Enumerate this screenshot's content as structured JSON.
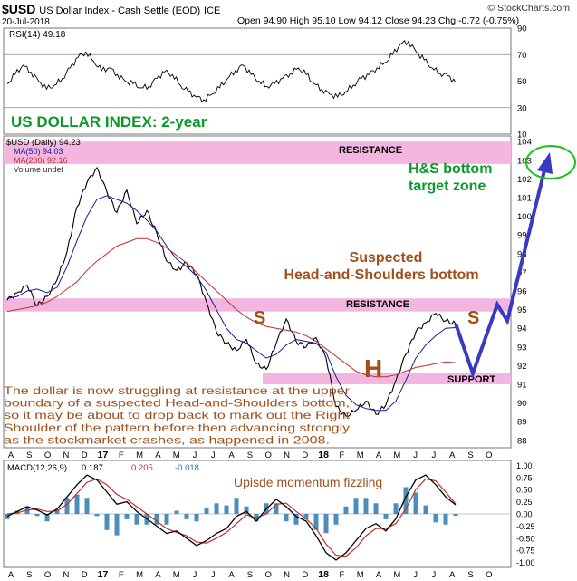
{
  "header": {
    "ticker": "$USD",
    "name": "US Dollar Index - Cash Settle (EOD)",
    "exchange": "ICE",
    "date": "20-Jul-2018",
    "ohlc": "Open 94.90  High 95.10  Low 94.12  Close 94.23  Chg -0.72 (-0.75%)",
    "credit": "© StockCharts.com"
  },
  "colors": {
    "band": "#f2b6e0",
    "price_line": "#000000",
    "ma50": "#1a1a8c",
    "ma200": "#c0302a",
    "annotation_brown": "#a0501a",
    "title_green": "#0a9a2a",
    "arrow_blue": "#3a3ac0",
    "target_green": "#1cc01c",
    "macd_hist": "#2a7ab0"
  },
  "chart_data": [
    {
      "type": "line",
      "panel": "RSI",
      "legend": "RSI(14) 49.18",
      "y_ticks": [
        10,
        30,
        50,
        70,
        90
      ],
      "ylim": [
        10,
        90
      ],
      "reference_lines": [
        30,
        70
      ],
      "values": [
        48,
        55,
        62,
        57,
        50,
        44,
        47,
        52,
        60,
        68,
        72,
        65,
        58,
        60,
        55,
        50,
        48,
        45,
        46,
        52,
        57,
        55,
        47,
        42,
        38,
        36,
        40,
        45,
        52,
        58,
        62,
        55,
        50,
        46,
        48,
        52,
        56,
        60,
        55,
        48,
        44,
        40,
        38,
        42,
        47,
        52,
        55,
        60,
        64,
        70,
        78,
        80,
        72,
        66,
        60,
        56,
        54,
        49
      ]
    },
    {
      "type": "line",
      "panel": "price",
      "title": "US DOLLAR INDEX: 2-year",
      "legend": [
        "$USD (Daily) 94.23",
        "MA(50) 94.03",
        "MA(200) 92.16",
        "Volume undef"
      ],
      "x_tick_labels": [
        "A",
        "S",
        "O",
        "N",
        "D",
        "17",
        "F",
        "M",
        "A",
        "M",
        "J",
        "J",
        "A",
        "S",
        "O",
        "N",
        "D",
        "18",
        "F",
        "M",
        "A",
        "M",
        "J",
        "J",
        "A",
        "S",
        "O"
      ],
      "y_ticks": [
        88,
        89,
        90,
        91,
        92,
        93,
        94,
        95,
        96,
        97,
        98,
        99,
        100,
        101,
        102,
        103,
        104
      ],
      "ylim": [
        87.6,
        104.3
      ],
      "series": [
        {
          "name": "$USD (Daily)",
          "values": [
            95.5,
            95.9,
            96.3,
            95.2,
            95.7,
            96.6,
            98.1,
            100.5,
            101.8,
            102.6,
            101.3,
            100.2,
            101.4,
            99.6,
            100.3,
            99.1,
            97.6,
            97.1,
            97.5,
            96.9,
            95.4,
            93.8,
            93.2,
            92.8,
            93.4,
            92.1,
            91.8,
            93.2,
            94.5,
            93.3,
            93.0,
            93.5,
            92.4,
            89.8,
            89.3,
            89.6,
            90.1,
            89.4,
            89.9,
            91.2,
            92.6,
            93.8,
            94.3,
            94.8,
            94.4,
            94.23
          ]
        },
        {
          "name": "MA(50)",
          "values": [
            95.6,
            95.7,
            96.0,
            96.1,
            95.9,
            96.2,
            97.3,
            98.7,
            100.0,
            100.9,
            101.1,
            100.9,
            100.7,
            100.3,
            99.8,
            99.2,
            98.4,
            97.7,
            97.3,
            96.8,
            96.0,
            95.0,
            94.0,
            93.4,
            93.2,
            92.8,
            92.4,
            92.6,
            93.1,
            93.4,
            93.3,
            93.2,
            92.7,
            91.4,
            90.4,
            89.9,
            89.7,
            89.6,
            89.6,
            90.1,
            91.2,
            92.4,
            93.1,
            93.6,
            94.0,
            94.03
          ]
        },
        {
          "name": "MA(200)",
          "values": [
            94.9,
            95.0,
            95.1,
            95.2,
            95.4,
            95.7,
            96.1,
            96.5,
            97.1,
            97.6,
            98.0,
            98.4,
            98.6,
            98.8,
            98.8,
            98.6,
            98.3,
            97.9,
            97.5,
            97.0,
            96.5,
            96.0,
            95.5,
            95.0,
            94.6,
            94.3,
            94.1,
            94.0,
            93.9,
            93.8,
            93.6,
            93.3,
            92.9,
            92.5,
            92.1,
            91.7,
            91.5,
            91.4,
            91.4,
            91.5,
            91.7,
            91.9,
            92.0,
            92.1,
            92.2,
            92.16
          ]
        }
      ],
      "annotations": [
        {
          "text": "RESISTANCE",
          "zone": [
            102.8,
            104.0
          ]
        },
        {
          "text": "RESISTANCE",
          "zone": [
            94.9,
            95.6
          ]
        },
        {
          "text": "SUPPORT",
          "zone": [
            91.0,
            91.6
          ]
        },
        {
          "text": "H&S bottom"
        },
        {
          "text": "target zone"
        },
        {
          "text": "Suspected"
        },
        {
          "text": "Head-and-Shoulders bottom"
        },
        {
          "text": "S"
        },
        {
          "text": "H"
        },
        {
          "text": "S"
        }
      ],
      "commentary": [
        "The dollar is now struggling at resistance at the upper",
        "boundary of a suspected Head-and-Shoulders bottom,",
        "so it may be about to drop back to mark out the Right",
        "Shoulder of the pattern before then advancing strongly",
        "as the stockmarket crashes, as happened in 2008."
      ]
    },
    {
      "type": "line",
      "panel": "MACD",
      "legend": {
        "prefix": "MACD(12,26,9)",
        "macd": "0.187",
        "signal": "0.205",
        "hist": "-0.018"
      },
      "y_ticks": [
        -1.0,
        -0.75,
        -0.5,
        -0.25,
        0.0,
        0.25,
        0.5,
        0.75,
        1.0
      ],
      "ylim": [
        -1.1,
        1.1
      ],
      "annotation": "Upisde momentum fizzling",
      "series": [
        {
          "name": "MACD",
          "values": [
            -0.05,
            0.05,
            0.15,
            0.08,
            -0.02,
            0.1,
            0.35,
            0.6,
            0.8,
            0.7,
            0.45,
            0.2,
            0.25,
            0.05,
            -0.1,
            -0.25,
            -0.4,
            -0.35,
            -0.5,
            -0.65,
            -0.55,
            -0.4,
            -0.3,
            -0.05,
            0.05,
            -0.15,
            0.1,
            0.3,
            0.15,
            -0.05,
            -0.15,
            -0.45,
            -0.8,
            -0.95,
            -0.8,
            -0.55,
            -0.3,
            -0.2,
            -0.35,
            -0.1,
            0.35,
            0.7,
            0.8,
            0.6,
            0.35,
            0.187
          ]
        },
        {
          "name": "Signal",
          "values": [
            0.0,
            0.02,
            0.08,
            0.1,
            0.05,
            0.06,
            0.2,
            0.42,
            0.65,
            0.72,
            0.6,
            0.4,
            0.3,
            0.15,
            0.0,
            -0.15,
            -0.3,
            -0.38,
            -0.45,
            -0.58,
            -0.6,
            -0.5,
            -0.38,
            -0.2,
            -0.02,
            -0.08,
            0.0,
            0.2,
            0.22,
            0.05,
            -0.1,
            -0.3,
            -0.62,
            -0.85,
            -0.87,
            -0.7,
            -0.45,
            -0.3,
            -0.3,
            -0.2,
            0.1,
            0.5,
            0.72,
            0.68,
            0.45,
            0.205
          ]
        }
      ],
      "x_tick_labels": [
        "A",
        "S",
        "O",
        "N",
        "D",
        "17",
        "F",
        "M",
        "A",
        "M",
        "J",
        "J",
        "A",
        "S",
        "O",
        "N",
        "D",
        "18",
        "F",
        "M",
        "A",
        "M",
        "J",
        "J",
        "A",
        "S",
        "O"
      ]
    }
  ]
}
